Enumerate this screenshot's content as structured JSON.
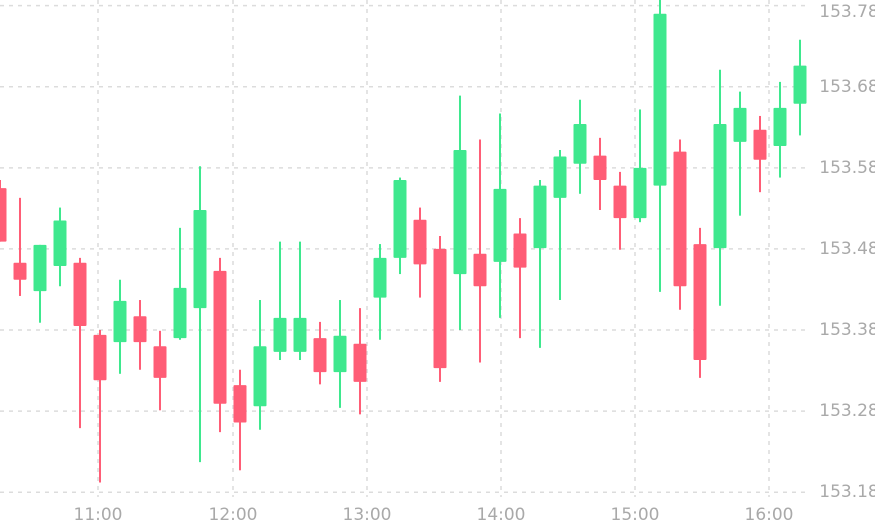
{
  "chart_data": {
    "type": "candlestick",
    "categories": [
      null,
      null,
      null,
      null,
      null,
      null,
      null,
      null,
      null,
      null,
      null,
      null,
      null,
      null,
      null,
      null,
      null,
      null,
      null,
      null,
      null,
      null,
      null,
      null,
      null,
      null,
      null,
      null,
      null,
      null,
      null,
      null,
      null,
      null,
      null,
      null,
      null,
      null,
      null,
      null,
      null
    ],
    "open": [
      153.555,
      153.463,
      153.428,
      153.459,
      153.463,
      153.374,
      153.365,
      153.397,
      153.36,
      153.37,
      153.407,
      153.453,
      153.312,
      153.286,
      153.353,
      153.353,
      153.37,
      153.328,
      153.363,
      153.42,
      153.469,
      153.516,
      153.48,
      153.449,
      153.474,
      153.464,
      153.499,
      153.481,
      153.543,
      153.585,
      153.595,
      153.558,
      153.518,
      153.558,
      153.6,
      153.486,
      153.481,
      153.612,
      153.627,
      153.607,
      153.659
    ],
    "high": [
      153.565,
      153.543,
      153.485,
      153.531,
      153.469,
      153.38,
      153.442,
      153.417,
      153.379,
      153.506,
      153.582,
      153.469,
      153.331,
      153.417,
      153.489,
      153.489,
      153.39,
      153.417,
      153.407,
      153.486,
      153.568,
      153.531,
      153.496,
      153.669,
      153.615,
      153.647,
      153.518,
      153.565,
      153.602,
      153.664,
      153.617,
      153.575,
      153.652,
      153.787,
      153.615,
      153.506,
      153.701,
      153.674,
      153.644,
      153.686,
      153.738
    ],
    "low": [
      153.489,
      153.422,
      153.389,
      153.434,
      153.259,
      153.192,
      153.326,
      153.331,
      153.281,
      153.368,
      153.217,
      153.254,
      153.207,
      153.257,
      153.343,
      153.343,
      153.313,
      153.284,
      153.276,
      153.368,
      153.449,
      153.42,
      153.316,
      153.38,
      153.34,
      153.395,
      153.37,
      153.358,
      153.417,
      153.548,
      153.528,
      153.479,
      153.513,
      153.427,
      153.405,
      153.321,
      153.41,
      153.521,
      153.55,
      153.568,
      153.62
    ],
    "close": [
      153.489,
      153.442,
      153.485,
      153.515,
      153.385,
      153.318,
      153.416,
      153.365,
      153.321,
      153.432,
      153.528,
      153.289,
      153.266,
      153.36,
      153.395,
      153.395,
      153.328,
      153.373,
      153.316,
      153.469,
      153.565,
      153.461,
      153.333,
      153.602,
      153.434,
      153.554,
      153.457,
      153.558,
      153.594,
      153.634,
      153.565,
      153.518,
      153.58,
      153.77,
      153.434,
      153.343,
      153.634,
      153.654,
      153.59,
      153.654,
      153.706
    ],
    "up_color": "#3ee88e",
    "down_color": "#ff5d76",
    "ylim": [
      153.142,
      153.787
    ],
    "yticks": [
      153.18,
      153.28,
      153.38,
      153.48,
      153.58,
      153.68,
      153.78
    ],
    "xticks": [
      {
        "value": 4.9,
        "label": "11:00"
      },
      {
        "value": 11.65,
        "label": "12:00"
      },
      {
        "value": 18.35,
        "label": "13:00"
      },
      {
        "value": 25.05,
        "label": "14:00"
      },
      {
        "value": 31.75,
        "label": "15:00"
      },
      {
        "value": 38.45,
        "label": "16:00"
      }
    ],
    "grid": true
  }
}
